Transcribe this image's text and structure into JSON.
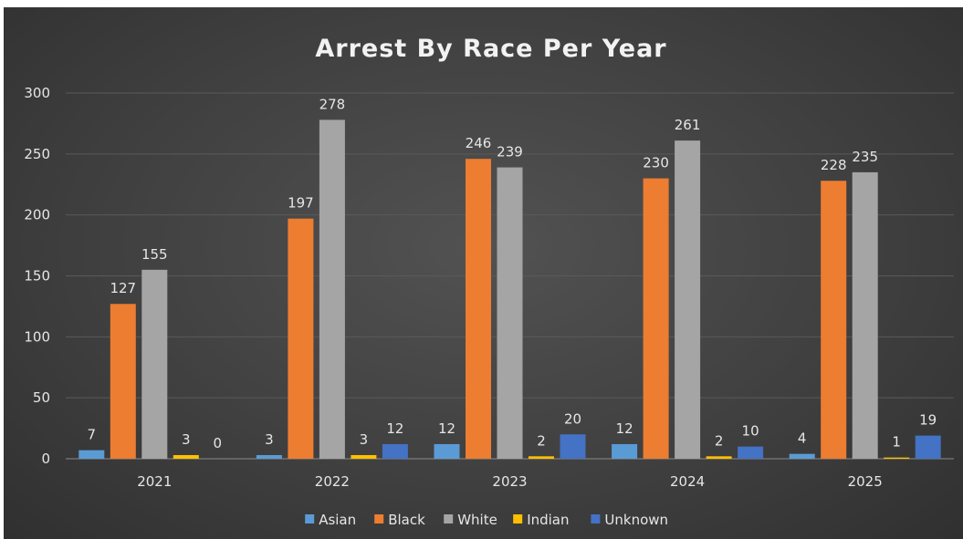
{
  "chart_data": {
    "type": "bar",
    "title": "Arrest By Race Per Year",
    "xlabel": "",
    "ylabel": "",
    "ylim": [
      0,
      300
    ],
    "yticks": [
      0,
      50,
      100,
      150,
      200,
      250,
      300
    ],
    "categories": [
      "2021",
      "2022",
      "2023",
      "2024",
      "2025"
    ],
    "series": [
      {
        "name": "Asian",
        "color": "#5b9bd5",
        "values": [
          7,
          3,
          12,
          12,
          4
        ]
      },
      {
        "name": "Black",
        "color": "#ed7d31",
        "values": [
          127,
          197,
          246,
          230,
          228
        ]
      },
      {
        "name": "White",
        "color": "#a5a5a5",
        "values": [
          155,
          278,
          239,
          261,
          235
        ]
      },
      {
        "name": "Indian",
        "color": "#ffc000",
        "values": [
          3,
          3,
          2,
          2,
          1
        ]
      },
      {
        "name": "Unknown",
        "color": "#4472c4",
        "values": [
          0,
          12,
          20,
          10,
          19
        ]
      }
    ],
    "grid": true,
    "legend_position": "bottom",
    "data_labels": true
  },
  "colors": {
    "background": "#404040",
    "text": "#e6e6e6",
    "gridline": "#5a5a5a"
  }
}
